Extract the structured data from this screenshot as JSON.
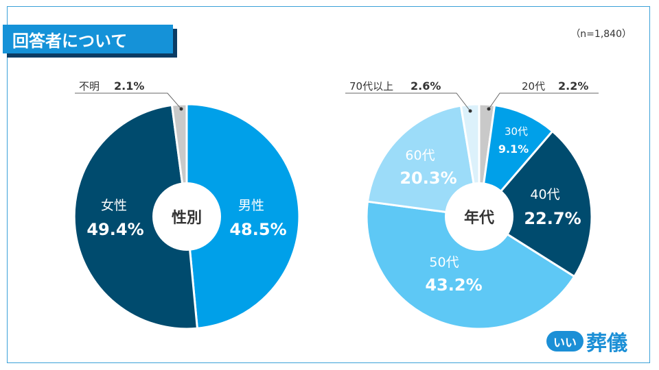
{
  "header": {
    "title": "回答者について",
    "sample_size": "（n=1,840）"
  },
  "brand": {
    "badge": "いい",
    "name": "葬儀",
    "color": "#1b8fd6"
  },
  "chart_data": [
    {
      "type": "pie",
      "title": "性別",
      "categories": [
        "男性",
        "女性",
        "不明"
      ],
      "values": [
        48.5,
        49.4,
        2.1
      ],
      "value_labels": [
        "48.5%",
        "49.4%",
        "2.1%"
      ],
      "colors": [
        "#00a0e9",
        "#004b6e",
        "#c9c9c9"
      ]
    },
    {
      "type": "pie",
      "title": "年代",
      "categories": [
        "20代",
        "30代",
        "40代",
        "50代",
        "60代",
        "70代以上"
      ],
      "values": [
        2.2,
        9.1,
        22.7,
        43.2,
        20.3,
        2.6
      ],
      "value_labels": [
        "2.2%",
        "9.1%",
        "22.7%",
        "43.2%",
        "20.3%",
        "2.6%"
      ],
      "colors": [
        "#c9c9c9",
        "#00a0e9",
        "#004b6e",
        "#5ec8f5",
        "#9cdcf9",
        "#dcf1fb"
      ]
    }
  ]
}
